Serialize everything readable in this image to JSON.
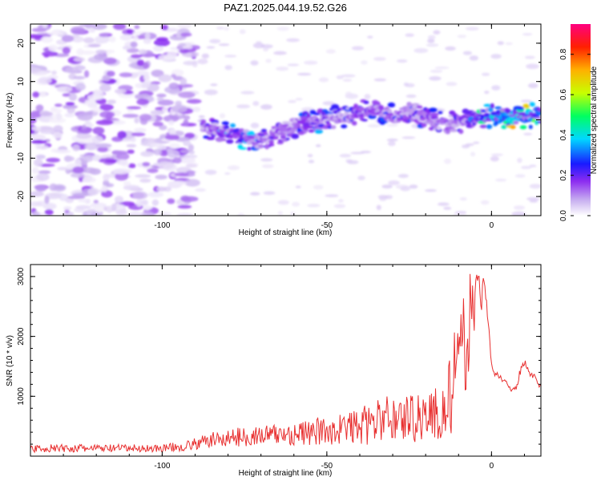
{
  "title": "PAZ1.2025.044.19.52.G26",
  "chart_data": [
    {
      "type": "heatmap",
      "xlabel": "Height of straight line (km)",
      "ylabel": "Frequency (Hz)",
      "xlim": [
        -140,
        15
      ],
      "ylim": [
        -25,
        25
      ],
      "xticks": [
        -100,
        -50,
        0
      ],
      "yticks": [
        -20,
        -10,
        0,
        10,
        20
      ],
      "colorbar": {
        "label": "Normalized spectral amplitude",
        "range": [
          0,
          0.95
        ],
        "ticks": [
          "0.0",
          "0.2",
          "0.4",
          "0.6",
          "0.8"
        ],
        "colormap": [
          "#ffffff",
          "#c8b0f0",
          "#8c2cf0",
          "#1a1aff",
          "#00d8ff",
          "#00ff60",
          "#c8ff00",
          "#ffb000",
          "#ff2000",
          "#ff0080"
        ]
      },
      "ridge": {
        "x": [
          -88,
          -84,
          -80,
          -76,
          -72,
          -68,
          -64,
          -60,
          -56,
          -52,
          -48,
          -44,
          -40,
          -36,
          -32,
          -28,
          -24,
          -20,
          -16,
          -12,
          -8,
          -4,
          0,
          4,
          8,
          12,
          15
        ],
        "freq": [
          -1,
          -2.5,
          -3.5,
          -4.5,
          -5,
          -5,
          -3,
          -2,
          -1,
          -0.5,
          0.5,
          1,
          2,
          3,
          1.5,
          0.5,
          2,
          0.5,
          -1,
          -1,
          0,
          0.5,
          1,
          1,
          1,
          1,
          1.5
        ],
        "amplitude": [
          0.25,
          0.35,
          0.35,
          0.4,
          0.35,
          0.3,
          0.3,
          0.3,
          0.35,
          0.35,
          0.3,
          0.3,
          0.35,
          0.3,
          0.3,
          0.3,
          0.3,
          0.3,
          0.25,
          0.3,
          0.35,
          0.4,
          0.55,
          0.6,
          0.65,
          0.6,
          0.55
        ]
      }
    },
    {
      "type": "line",
      "xlabel": "Height of straight line (km)",
      "ylabel": "SNR (10 * v/v)",
      "xlim": [
        -140,
        15
      ],
      "ylim": [
        0,
        3200
      ],
      "xticks": [
        -100,
        -50,
        0
      ],
      "yticks": [
        1000,
        2000,
        3000
      ],
      "color": "#e83030",
      "envelope": {
        "x": [
          -140,
          -120,
          -100,
          -92,
          -85,
          -75,
          -65,
          -55,
          -45,
          -38,
          -32,
          -25,
          -18,
          -14,
          -12,
          -10,
          -8,
          -6,
          -4,
          -2,
          0,
          2,
          4,
          6,
          8,
          10,
          12,
          15
        ],
        "mean": [
          110,
          110,
          110,
          150,
          230,
          280,
          300,
          320,
          380,
          420,
          520,
          520,
          560,
          550,
          900,
          1200,
          1600,
          2300,
          2600,
          2700,
          1300,
          1350,
          1250,
          1100,
          1300,
          1600,
          1300,
          1200
        ],
        "spread": [
          60,
          60,
          60,
          80,
          120,
          150,
          170,
          200,
          250,
          300,
          350,
          380,
          420,
          500,
          700,
          800,
          800,
          600,
          400,
          250,
          150,
          150,
          100,
          150,
          300,
          400,
          200,
          200
        ]
      }
    }
  ]
}
